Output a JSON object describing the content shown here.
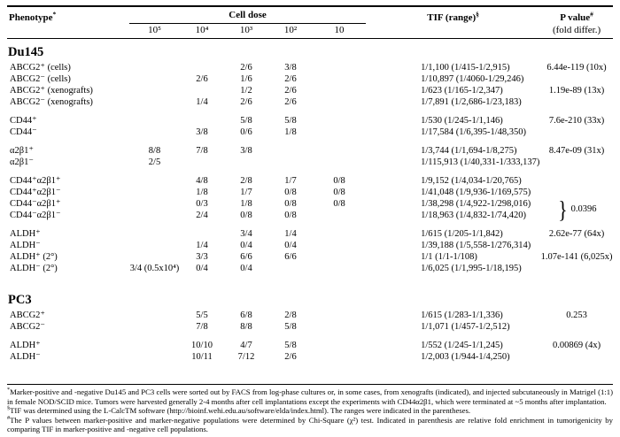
{
  "table": {
    "header": {
      "phenotype": "Phenotype",
      "phenotype_mark": "*",
      "cell_dose": "Cell dose",
      "doses": [
        "10⁵",
        "10⁴",
        "10³",
        "10²",
        "10"
      ],
      "tif": "TIF (range)",
      "tif_mark": "§",
      "p_value": "P value",
      "p_value_mark": "#",
      "p_value_sub": "(fold differ.)"
    },
    "sections": [
      {
        "title": "Du145",
        "groups": [
          [
            {
              "label": "ABCG2⁺ (cells)",
              "doses": [
                "",
                "",
                "2/6",
                "3/8",
                ""
              ],
              "tif": "1/1,100 (1/415-1/2,915)",
              "p": "6.44e-119 (10x)"
            },
            {
              "label": "ABCG2⁻ (cells)",
              "doses": [
                "",
                "2/6",
                "1/6",
                "2/6",
                ""
              ],
              "tif": "1/10,897 (1/4060-1/29,246)",
              "p": ""
            },
            {
              "label": "ABCG2⁺ (xenografts)",
              "doses": [
                "",
                "",
                "1/2",
                "2/6",
                ""
              ],
              "tif": "1/623 (1/165-1/2,347)",
              "p": "1.19e-89 (13x)"
            },
            {
              "label": "ABCG2⁻ (xenografts)",
              "doses": [
                "",
                "1/4",
                "2/6",
                "2/6",
                ""
              ],
              "tif": "1/7,891 (1/2,686-1/23,183)",
              "p": ""
            }
          ],
          [
            {
              "label": "CD44⁺",
              "doses": [
                "",
                "",
                "5/8",
                "5/8",
                ""
              ],
              "tif": "1/530 (1/245-1/1,146)",
              "p": "7.6e-210 (33x)"
            },
            {
              "label": "CD44⁻",
              "doses": [
                "",
                "3/8",
                "0/6",
                "1/8",
                ""
              ],
              "tif": "1/17,584 (1/6,395-1/48,350)",
              "p": ""
            }
          ],
          [
            {
              "label": "α2β1⁺",
              "doses": [
                "8/8",
                "7/8",
                "3/8",
                "",
                ""
              ],
              "tif": "1/3,744 (1/1,694-1/8,275)",
              "p": "8.47e-09 (31x)"
            },
            {
              "label": "α2β1⁻",
              "doses": [
                "2/5",
                "",
                "",
                "",
                ""
              ],
              "tif": "1/115,913 (1/40,331-1/333,137)",
              "p": ""
            }
          ],
          [
            {
              "label": "CD44⁺α2β1⁺",
              "doses": [
                "",
                "4/8",
                "2/8",
                "1/7",
                "0/8"
              ],
              "tif": "1/9,152 (1/4,034-1/20,765)",
              "p": ""
            },
            {
              "label": "CD44⁺α2β1⁻",
              "doses": [
                "",
                "1/8",
                "1/7",
                "0/8",
                "0/8"
              ],
              "tif": "1/41,048 (1/9,936-1/169,575)",
              "p": ""
            },
            {
              "label": "CD44⁻α2β1⁺",
              "doses": [
                "",
                "0/3",
                "1/8",
                "0/8",
                "0/8"
              ],
              "tif": "1/38,298 (1/4,922-1/298,016)",
              "p": "0.0396",
              "brace": "start"
            },
            {
              "label": "CD44⁻α2β1⁻",
              "doses": [
                "",
                "2/4",
                "0/8",
                "0/8",
                ""
              ],
              "tif": "1/18,963 (1/4,832-1/74,420)",
              "p": "",
              "brace": "skip"
            }
          ],
          [
            {
              "label": "ALDH⁺",
              "doses": [
                "",
                "",
                "3/4",
                "1/4",
                ""
              ],
              "tif": "1/615 (1/205-1/1,842)",
              "p": "2.62e-77 (64x)"
            },
            {
              "label": "ALDH⁻",
              "doses": [
                "",
                "1/4",
                "0/4",
                "0/4",
                ""
              ],
              "tif": "1/39,188 (1/5,558-1/276,314)",
              "p": ""
            },
            {
              "label": "ALDH⁺ (2°)",
              "doses": [
                "",
                "3/3",
                "6/6",
                "6/6",
                ""
              ],
              "tif": "1/1 (1/1-1/108)",
              "p": "1.07e-141 (6,025x)"
            },
            {
              "label": "ALDH⁻ (2°)",
              "doses": [
                "3/4 (0.5x10⁴)",
                "0/4",
                "0/4",
                "",
                ""
              ],
              "tif": "1/6,025 (1/1,995-1/18,195)",
              "p": ""
            }
          ]
        ]
      },
      {
        "title": "PC3",
        "groups": [
          [
            {
              "label": "ABCG2⁺",
              "doses": [
                "",
                "5/5",
                "6/8",
                "2/8",
                ""
              ],
              "tif": "1/615 (1/283-1/1,336)",
              "p": "0.253"
            },
            {
              "label": "ABCG2⁻",
              "doses": [
                "",
                "7/8",
                "8/8",
                "5/8",
                ""
              ],
              "tif": "1/1,071 (1/457-1/2,512)",
              "p": ""
            }
          ],
          [
            {
              "label": "ALDH⁺",
              "doses": [
                "",
                "10/10",
                "4/7",
                "5/8",
                ""
              ],
              "tif": "1/552 (1/245-1/1,245)",
              "p": "0.00869 (4x)"
            },
            {
              "label": "ALDH⁻",
              "doses": [
                "",
                "10/11",
                "7/12",
                "2/6",
                ""
              ],
              "tif": "1/2,003 (1/944-1/4,250)",
              "p": ""
            }
          ]
        ]
      }
    ]
  },
  "footnotes": [
    {
      "mark": "*",
      "text": "Marker-positive and -negative Du145 and PC3 cells were sorted out by FACS from log-phase cultures or, in some cases, from xenografts (indicated), and injected subcutaneously in Matrigel (1:1) in female NOD/SCID mice. Tumors were harvested generally 2-4 months after cell implantations except the experiments with CD44α2β1, which were terminated at ~5 months after implantation."
    },
    {
      "mark": "§",
      "text": "TIF was determined using the L-CalcTM software (http://bioinf.wehi.edu.au/software/elda/index.html). The ranges were indicated in the parentheses."
    },
    {
      "mark": "#",
      "text": "The P values between marker-positive and marker-negative populations were determined by Chi-Square (χ²) test. Indicated in parenthesis are relative fold enrichment in tumorigenicity by comparing TIF in marker-positive and -negative cell populations."
    }
  ]
}
